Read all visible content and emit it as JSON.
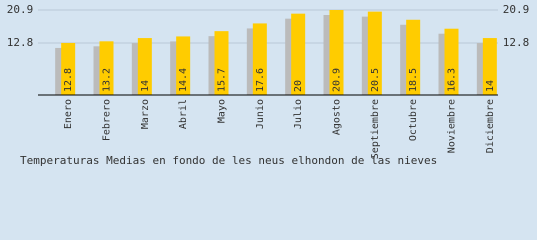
{
  "chart_data": {
    "type": "bar",
    "title": "Temperaturas Medias en fondo de les neus elhondon de las nieves",
    "categories": [
      "Enero",
      "Febrero",
      "Marzo",
      "Abril",
      "Mayo",
      "Junio",
      "Julio",
      "Agosto",
      "Septiembre",
      "Octubre",
      "Noviembre",
      "Diciembre"
    ],
    "values": [
      12.8,
      13.2,
      14.0,
      14.4,
      15.7,
      17.6,
      20.0,
      20.9,
      20.5,
      18.5,
      16.3,
      14.0
    ],
    "color": "#ffcc00",
    "shadow_color": "#bbbbbb",
    "ylim": [
      0,
      20.9
    ],
    "yticks": [
      12.8,
      20.9
    ],
    "grid": true
  }
}
